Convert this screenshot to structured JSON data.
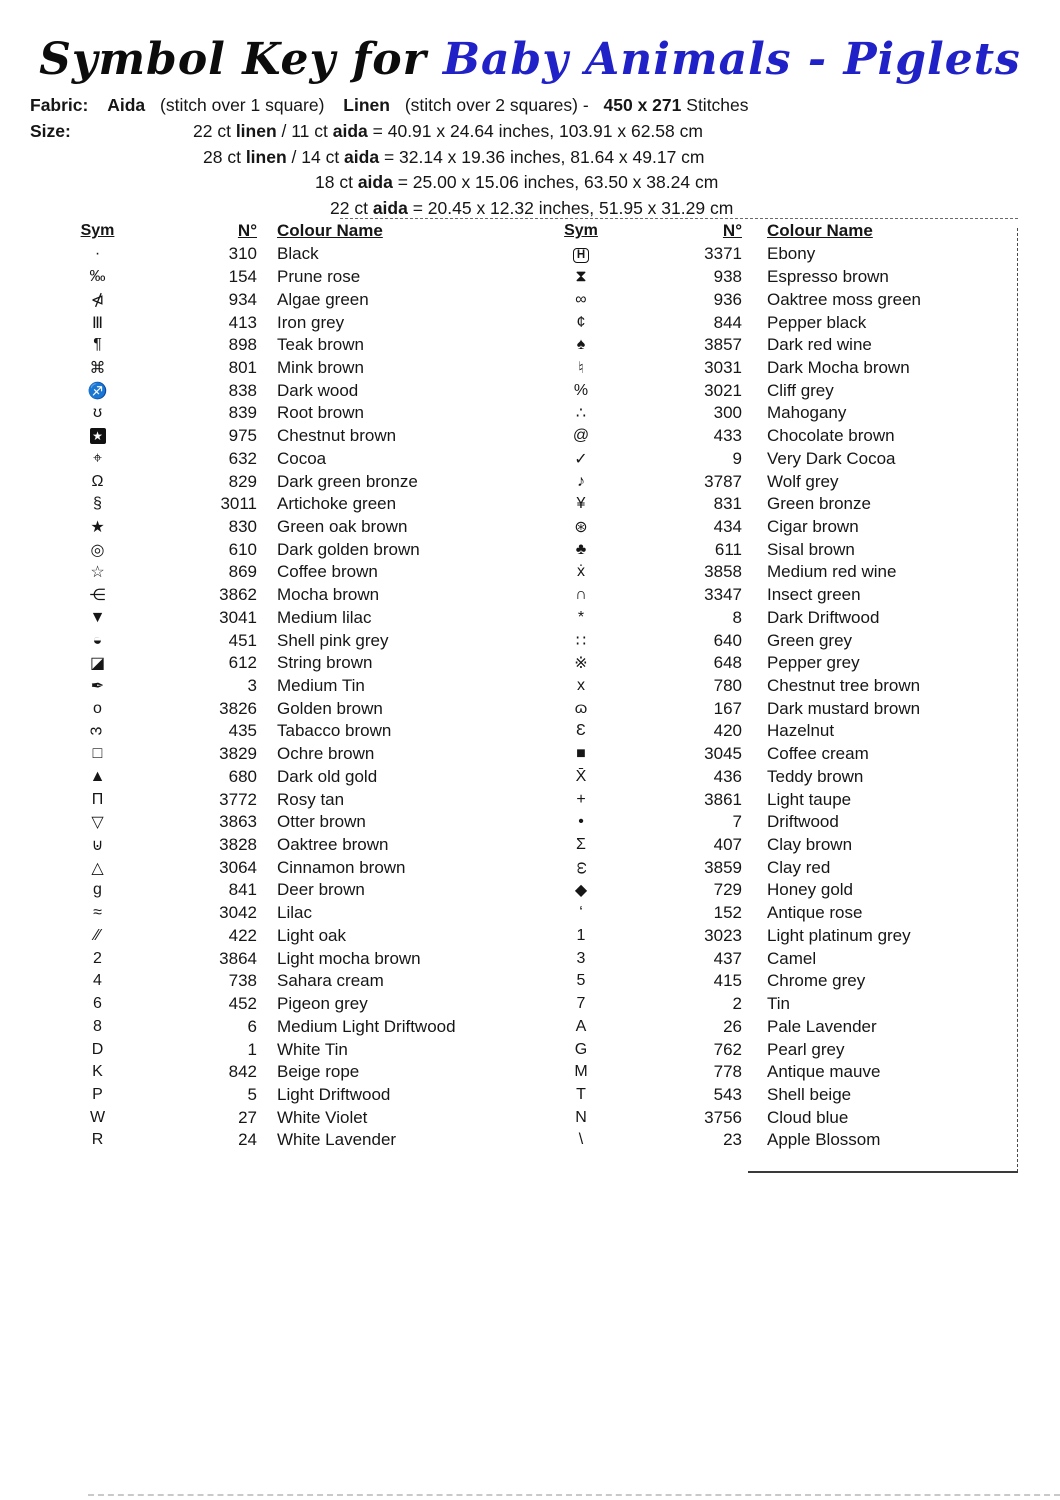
{
  "title": {
    "prefix": "Symbol Key for",
    "name": "Baby Animals - Piglets",
    "name_color": "#2121c8"
  },
  "fabric": {
    "label": "Fabric:",
    "aida": "Aida",
    "aida_note": "(stitch over 1 square)",
    "linen": "Linen",
    "linen_note": "(stitch over 2 squares) -",
    "stitch_count": "450 x 271",
    "stitches_word": "Stitches"
  },
  "size": {
    "label": "Size:",
    "lines": [
      {
        "t1": "22 ct ",
        "b1": "linen",
        "t2": " / 11 ct ",
        "b2": "aida",
        "t3": " = 40.91 x 24.64 inches, 103.91 x 62.58 cm"
      },
      {
        "t1": "28 ct ",
        "b1": "linen",
        "t2": " / 14 ct ",
        "b2": "aida",
        "t3": " = 32.14 x 19.36 inches, 81.64 x 49.17 cm"
      },
      {
        "t1": "18 ct ",
        "b1": "aida",
        "t2": "",
        "b2": "",
        "t3": "  = 25.00 x 15.06 inches, 63.50 x 38.24 cm"
      },
      {
        "t1": "22 ct ",
        "b1": "aida",
        "t2": "",
        "b2": "",
        "t3": " = 20.45 x 12.32 inches, 51.95 x 31.29 cm"
      }
    ]
  },
  "table": {
    "headers": {
      "sym": "Sym",
      "num": "N°",
      "name": "Colour Name"
    },
    "left": [
      {
        "s": "·",
        "n": "310",
        "c": "Black"
      },
      {
        "s": "‰",
        "n": "154",
        "c": "Prune rose"
      },
      {
        "s": "⋪",
        "n": "934",
        "c": "Algae green"
      },
      {
        "s": "Ⅲ",
        "n": "413",
        "c": "Iron grey"
      },
      {
        "s": "¶",
        "n": "898",
        "c": "Teak brown"
      },
      {
        "s": "⌘",
        "n": "801",
        "c": "Mink brown"
      },
      {
        "s": "♐",
        "n": "838",
        "c": "Dark wood"
      },
      {
        "s": "ʊ",
        "n": "839",
        "c": "Root brown"
      },
      {
        "s": "★",
        "st": "fillbox",
        "n": "975",
        "c": "Chestnut brown"
      },
      {
        "s": "⌖",
        "n": "632",
        "c": "Cocoa"
      },
      {
        "s": "Ω",
        "n": "829",
        "c": "Dark green bronze"
      },
      {
        "s": "§",
        "n": "3011",
        "c": "Artichoke green"
      },
      {
        "s": "★",
        "n": "830",
        "c": "Green oak brown"
      },
      {
        "s": "◎",
        "n": "610",
        "c": "Dark golden brown"
      },
      {
        "s": "☆",
        "n": "869",
        "c": "Coffee brown"
      },
      {
        "s": "⋲",
        "n": "3862",
        "c": "Mocha brown"
      },
      {
        "s": "▼",
        "n": "3041",
        "c": "Medium lilac"
      },
      {
        "s": "◒",
        "n": "451",
        "c": "Shell pink grey"
      },
      {
        "s": "◪",
        "n": "612",
        "c": "String brown"
      },
      {
        "s": "✒",
        "n": "3",
        "c": "Medium Tin"
      },
      {
        "s": "o",
        "n": "3826",
        "c": "Golden brown"
      },
      {
        "s": "3",
        "st": "rotm90",
        "n": "435",
        "c": "Tabacco brown"
      },
      {
        "s": "□",
        "n": "3829",
        "c": "Ochre brown"
      },
      {
        "s": "▲",
        "n": "680",
        "c": "Dark old gold"
      },
      {
        "s": "Π",
        "n": "3772",
        "c": "Rosy tan"
      },
      {
        "s": "▽",
        "n": "3863",
        "c": "Otter brown"
      },
      {
        "s": "⊍",
        "n": "3828",
        "c": "Oaktree brown"
      },
      {
        "s": "△",
        "n": "3064",
        "c": "Cinnamon brown"
      },
      {
        "s": "g",
        "n": "841",
        "c": "Deer brown"
      },
      {
        "s": "≈",
        "n": "3042",
        "c": "Lilac"
      },
      {
        "s": "⁄⁄",
        "n": "422",
        "c": "Light oak"
      },
      {
        "s": "2",
        "n": "3864",
        "c": "Light mocha brown"
      },
      {
        "s": "4",
        "n": "738",
        "c": "Sahara cream"
      },
      {
        "s": "6",
        "n": "452",
        "c": "Pigeon grey"
      },
      {
        "s": "8",
        "n": "6",
        "c": "Medium Light Driftwood"
      },
      {
        "s": "D",
        "n": "1",
        "c": "White Tin"
      },
      {
        "s": "K",
        "n": "842",
        "c": "Beige rope"
      },
      {
        "s": "P",
        "n": "5",
        "c": "Light Driftwood"
      },
      {
        "s": "W",
        "n": "27",
        "c": "White Violet"
      },
      {
        "s": "R",
        "n": "24",
        "c": "White Lavender"
      }
    ],
    "right": [
      {
        "s": "H",
        "st": "box",
        "n": "3371",
        "c": "Ebony"
      },
      {
        "s": "⧗",
        "n": "938",
        "c": "Espresso brown"
      },
      {
        "s": "∞",
        "n": "936",
        "c": "Oaktree moss green"
      },
      {
        "s": "¢",
        "n": "844",
        "c": "Pepper black"
      },
      {
        "s": "♠",
        "n": "3857",
        "c": "Dark red wine"
      },
      {
        "s": "♮",
        "n": "3031",
        "c": "Dark Mocha brown"
      },
      {
        "s": "%",
        "n": "3021",
        "c": "Cliff grey"
      },
      {
        "s": "∴",
        "n": "300",
        "c": "Mahogany"
      },
      {
        "s": "@",
        "n": "433",
        "c": "Chocolate brown"
      },
      {
        "s": "✓",
        "n": "9",
        "c": "Very Dark Cocoa"
      },
      {
        "s": "♪",
        "n": "3787",
        "c": "Wolf grey"
      },
      {
        "s": "¥",
        "n": "831",
        "c": "Green bronze"
      },
      {
        "s": "⊛",
        "n": "434",
        "c": "Cigar brown"
      },
      {
        "s": "♣",
        "n": "611",
        "c": "Sisal brown"
      },
      {
        "s": "ẋ",
        "n": "3858",
        "c": "Medium red wine"
      },
      {
        "s": "∩",
        "n": "3347",
        "c": "Insect green"
      },
      {
        "s": "*",
        "n": "8",
        "c": "Dark Driftwood"
      },
      {
        "s": "∷",
        "n": "640",
        "c": "Green grey"
      },
      {
        "s": "※",
        "n": "648",
        "c": "Pepper grey"
      },
      {
        "s": "x",
        "n": "780",
        "c": "Chestnut tree brown"
      },
      {
        "s": "ɷ",
        "n": "167",
        "c": "Dark mustard brown"
      },
      {
        "s": "Ɛ",
        "n": "420",
        "c": "Hazelnut"
      },
      {
        "s": "■",
        "n": "3045",
        "c": "Coffee cream"
      },
      {
        "s": "X̄",
        "n": "436",
        "c": "Teddy brown"
      },
      {
        "s": "+",
        "n": "3861",
        "c": "Light taupe"
      },
      {
        "s": "•",
        "n": "7",
        "c": "Driftwood"
      },
      {
        "s": "Σ",
        "n": "407",
        "c": "Clay brown"
      },
      {
        "s": "ω",
        "st": "rot90",
        "n": "3859",
        "c": "Clay red"
      },
      {
        "s": "◆",
        "n": "729",
        "c": "Honey gold"
      },
      {
        "s": "‘",
        "n": "152",
        "c": "Antique rose"
      },
      {
        "s": "1",
        "n": "3023",
        "c": "Light platinum grey"
      },
      {
        "s": "3",
        "n": "437",
        "c": "Camel"
      },
      {
        "s": "5",
        "n": "415",
        "c": "Chrome grey"
      },
      {
        "s": "7",
        "n": "2",
        "c": "Tin"
      },
      {
        "s": "A",
        "n": "26",
        "c": "Pale Lavender"
      },
      {
        "s": "G",
        "n": "762",
        "c": "Pearl grey"
      },
      {
        "s": "M",
        "n": "778",
        "c": "Antique mauve"
      },
      {
        "s": "T",
        "n": "543",
        "c": "Shell beige"
      },
      {
        "s": "N",
        "n": "3756",
        "c": "Cloud blue"
      },
      {
        "s": "\\",
        "n": "23",
        "c": "Apple Blossom"
      }
    ]
  }
}
